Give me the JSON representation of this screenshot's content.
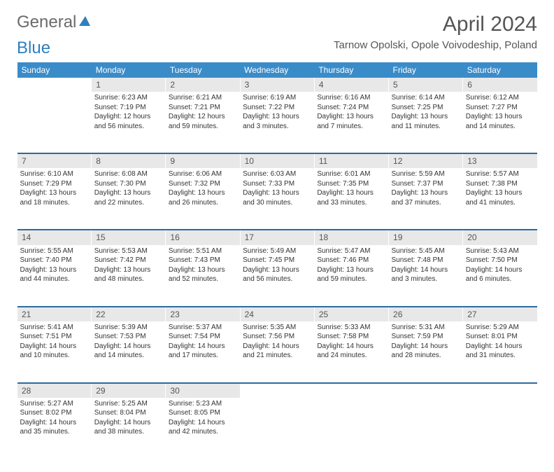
{
  "logo": {
    "text1": "General",
    "text2": "Blue"
  },
  "title": "April 2024",
  "location": "Tarnow Opolski, Opole Voivodeship, Poland",
  "header_bg": "#3a8cc9",
  "sep_color": "#2d6a9e",
  "daynum_bg": "#e8e8e9",
  "days": [
    "Sunday",
    "Monday",
    "Tuesday",
    "Wednesday",
    "Thursday",
    "Friday",
    "Saturday"
  ],
  "weeks": [
    {
      "nums": [
        "",
        "1",
        "2",
        "3",
        "4",
        "5",
        "6"
      ],
      "cells": [
        null,
        {
          "sr": "Sunrise: 6:23 AM",
          "ss": "Sunset: 7:19 PM",
          "dl1": "Daylight: 12 hours",
          "dl2": "and 56 minutes."
        },
        {
          "sr": "Sunrise: 6:21 AM",
          "ss": "Sunset: 7:21 PM",
          "dl1": "Daylight: 12 hours",
          "dl2": "and 59 minutes."
        },
        {
          "sr": "Sunrise: 6:19 AM",
          "ss": "Sunset: 7:22 PM",
          "dl1": "Daylight: 13 hours",
          "dl2": "and 3 minutes."
        },
        {
          "sr": "Sunrise: 6:16 AM",
          "ss": "Sunset: 7:24 PM",
          "dl1": "Daylight: 13 hours",
          "dl2": "and 7 minutes."
        },
        {
          "sr": "Sunrise: 6:14 AM",
          "ss": "Sunset: 7:25 PM",
          "dl1": "Daylight: 13 hours",
          "dl2": "and 11 minutes."
        },
        {
          "sr": "Sunrise: 6:12 AM",
          "ss": "Sunset: 7:27 PM",
          "dl1": "Daylight: 13 hours",
          "dl2": "and 14 minutes."
        }
      ]
    },
    {
      "nums": [
        "7",
        "8",
        "9",
        "10",
        "11",
        "12",
        "13"
      ],
      "cells": [
        {
          "sr": "Sunrise: 6:10 AM",
          "ss": "Sunset: 7:29 PM",
          "dl1": "Daylight: 13 hours",
          "dl2": "and 18 minutes."
        },
        {
          "sr": "Sunrise: 6:08 AM",
          "ss": "Sunset: 7:30 PM",
          "dl1": "Daylight: 13 hours",
          "dl2": "and 22 minutes."
        },
        {
          "sr": "Sunrise: 6:06 AM",
          "ss": "Sunset: 7:32 PM",
          "dl1": "Daylight: 13 hours",
          "dl2": "and 26 minutes."
        },
        {
          "sr": "Sunrise: 6:03 AM",
          "ss": "Sunset: 7:33 PM",
          "dl1": "Daylight: 13 hours",
          "dl2": "and 30 minutes."
        },
        {
          "sr": "Sunrise: 6:01 AM",
          "ss": "Sunset: 7:35 PM",
          "dl1": "Daylight: 13 hours",
          "dl2": "and 33 minutes."
        },
        {
          "sr": "Sunrise: 5:59 AM",
          "ss": "Sunset: 7:37 PM",
          "dl1": "Daylight: 13 hours",
          "dl2": "and 37 minutes."
        },
        {
          "sr": "Sunrise: 5:57 AM",
          "ss": "Sunset: 7:38 PM",
          "dl1": "Daylight: 13 hours",
          "dl2": "and 41 minutes."
        }
      ]
    },
    {
      "nums": [
        "14",
        "15",
        "16",
        "17",
        "18",
        "19",
        "20"
      ],
      "cells": [
        {
          "sr": "Sunrise: 5:55 AM",
          "ss": "Sunset: 7:40 PM",
          "dl1": "Daylight: 13 hours",
          "dl2": "and 44 minutes."
        },
        {
          "sr": "Sunrise: 5:53 AM",
          "ss": "Sunset: 7:42 PM",
          "dl1": "Daylight: 13 hours",
          "dl2": "and 48 minutes."
        },
        {
          "sr": "Sunrise: 5:51 AM",
          "ss": "Sunset: 7:43 PM",
          "dl1": "Daylight: 13 hours",
          "dl2": "and 52 minutes."
        },
        {
          "sr": "Sunrise: 5:49 AM",
          "ss": "Sunset: 7:45 PM",
          "dl1": "Daylight: 13 hours",
          "dl2": "and 56 minutes."
        },
        {
          "sr": "Sunrise: 5:47 AM",
          "ss": "Sunset: 7:46 PM",
          "dl1": "Daylight: 13 hours",
          "dl2": "and 59 minutes."
        },
        {
          "sr": "Sunrise: 5:45 AM",
          "ss": "Sunset: 7:48 PM",
          "dl1": "Daylight: 14 hours",
          "dl2": "and 3 minutes."
        },
        {
          "sr": "Sunrise: 5:43 AM",
          "ss": "Sunset: 7:50 PM",
          "dl1": "Daylight: 14 hours",
          "dl2": "and 6 minutes."
        }
      ]
    },
    {
      "nums": [
        "21",
        "22",
        "23",
        "24",
        "25",
        "26",
        "27"
      ],
      "cells": [
        {
          "sr": "Sunrise: 5:41 AM",
          "ss": "Sunset: 7:51 PM",
          "dl1": "Daylight: 14 hours",
          "dl2": "and 10 minutes."
        },
        {
          "sr": "Sunrise: 5:39 AM",
          "ss": "Sunset: 7:53 PM",
          "dl1": "Daylight: 14 hours",
          "dl2": "and 14 minutes."
        },
        {
          "sr": "Sunrise: 5:37 AM",
          "ss": "Sunset: 7:54 PM",
          "dl1": "Daylight: 14 hours",
          "dl2": "and 17 minutes."
        },
        {
          "sr": "Sunrise: 5:35 AM",
          "ss": "Sunset: 7:56 PM",
          "dl1": "Daylight: 14 hours",
          "dl2": "and 21 minutes."
        },
        {
          "sr": "Sunrise: 5:33 AM",
          "ss": "Sunset: 7:58 PM",
          "dl1": "Daylight: 14 hours",
          "dl2": "and 24 minutes."
        },
        {
          "sr": "Sunrise: 5:31 AM",
          "ss": "Sunset: 7:59 PM",
          "dl1": "Daylight: 14 hours",
          "dl2": "and 28 minutes."
        },
        {
          "sr": "Sunrise: 5:29 AM",
          "ss": "Sunset: 8:01 PM",
          "dl1": "Daylight: 14 hours",
          "dl2": "and 31 minutes."
        }
      ]
    },
    {
      "nums": [
        "28",
        "29",
        "30",
        "",
        "",
        "",
        ""
      ],
      "cells": [
        {
          "sr": "Sunrise: 5:27 AM",
          "ss": "Sunset: 8:02 PM",
          "dl1": "Daylight: 14 hours",
          "dl2": "and 35 minutes."
        },
        {
          "sr": "Sunrise: 5:25 AM",
          "ss": "Sunset: 8:04 PM",
          "dl1": "Daylight: 14 hours",
          "dl2": "and 38 minutes."
        },
        {
          "sr": "Sunrise: 5:23 AM",
          "ss": "Sunset: 8:05 PM",
          "dl1": "Daylight: 14 hours",
          "dl2": "and 42 minutes."
        },
        null,
        null,
        null,
        null
      ]
    }
  ]
}
